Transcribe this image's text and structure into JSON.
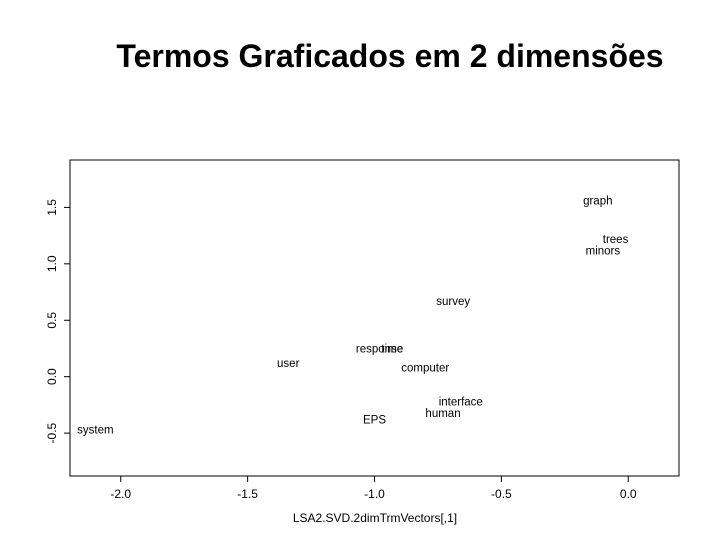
{
  "page": {
    "title": "Termos Graficados em 2 dimensões"
  },
  "chart_data": {
    "type": "scatter",
    "title": "Termos Graficados em 2 dimensões",
    "xlabel": "LSA2.SVD.2dimTrmVectors[,1]",
    "ylabel": "",
    "xlim": [
      -2.2,
      0.2
    ],
    "ylim": [
      -0.88,
      1.92
    ],
    "xticks": [
      -2.0,
      -1.5,
      -1.0,
      -0.5,
      0.0
    ],
    "xtick_labels": [
      "-2.0",
      "-1.5",
      "-1.0",
      "-0.5",
      "0.0"
    ],
    "yticks": [
      -0.5,
      0.0,
      0.5,
      1.0,
      1.5
    ],
    "ytick_labels": [
      "-0.5",
      "0.0",
      "0.5",
      "1.0",
      "1.5"
    ],
    "grid": false,
    "points": [
      {
        "label": "graph",
        "x": -0.12,
        "y": 1.56
      },
      {
        "label": "trees",
        "x": -0.05,
        "y": 1.22
      },
      {
        "label": "minors",
        "x": -0.1,
        "y": 1.12
      },
      {
        "label": "survey",
        "x": -0.69,
        "y": 0.67
      },
      {
        "label": "response",
        "x": -0.98,
        "y": 0.25
      },
      {
        "label": "time",
        "x": -0.93,
        "y": 0.25
      },
      {
        "label": "user",
        "x": -1.34,
        "y": 0.12
      },
      {
        "label": "computer",
        "x": -0.8,
        "y": 0.08
      },
      {
        "label": "interface",
        "x": -0.66,
        "y": -0.22
      },
      {
        "label": "human",
        "x": -0.73,
        "y": -0.32
      },
      {
        "label": "EPS",
        "x": -1.0,
        "y": -0.38
      },
      {
        "label": "system",
        "x": -2.1,
        "y": -0.47
      }
    ]
  }
}
